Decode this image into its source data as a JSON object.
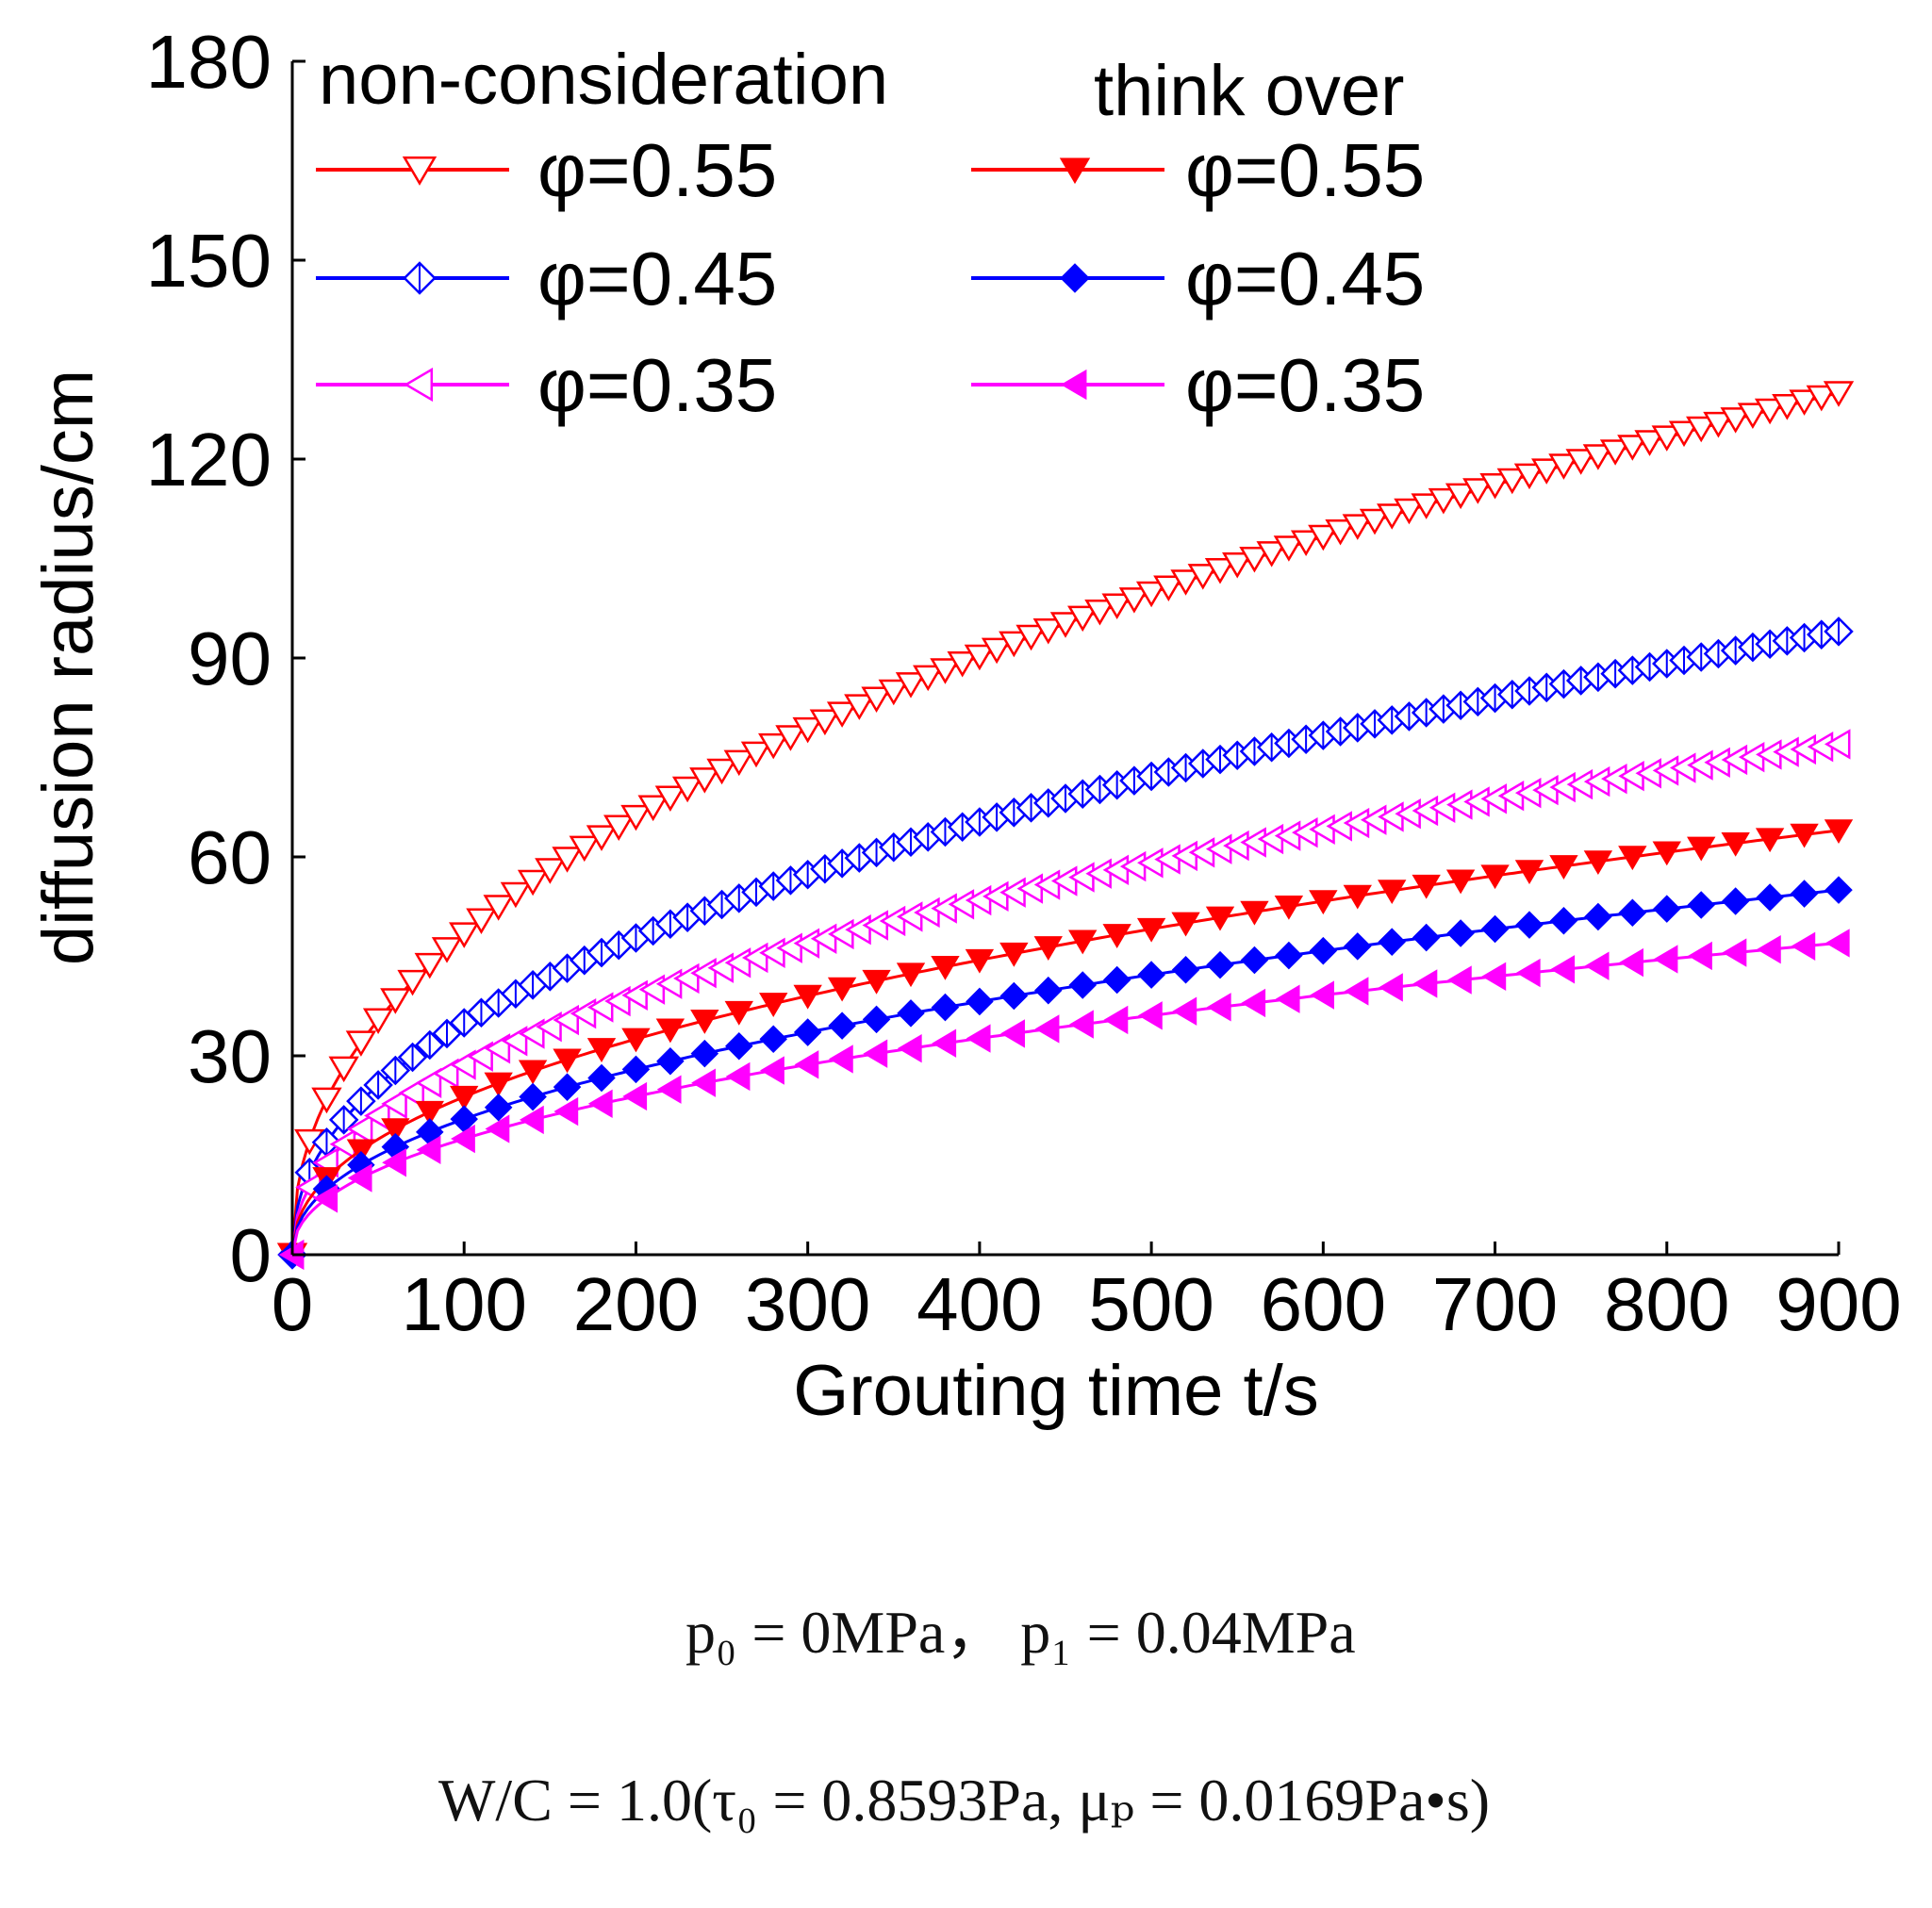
{
  "chart_data": {
    "type": "line",
    "xlabel": "Grouting time t/s",
    "ylabel": "diffusion radius/cm",
    "xlim": [
      0,
      900
    ],
    "ylim": [
      0,
      180
    ],
    "xticks": [
      0,
      100,
      200,
      300,
      400,
      500,
      600,
      700,
      800,
      900
    ],
    "yticks": [
      0,
      30,
      60,
      90,
      120,
      150,
      180
    ],
    "grid": false,
    "legend_position": "top-left",
    "legend_headers": {
      "left": "non-consideration",
      "right": "think over"
    },
    "series": [
      {
        "name": "non-consideration φ=0.55",
        "label": "φ=0.55",
        "group": "non-consideration",
        "color": "#ff0000",
        "marker": "triangle-down-open",
        "final": 130
      },
      {
        "name": "non-consideration φ=0.45",
        "label": "φ=0.45",
        "group": "non-consideration",
        "color": "#0000ff",
        "marker": "diamond-half",
        "final": 94
      },
      {
        "name": "non-consideration φ=0.35",
        "label": "φ=0.35",
        "group": "non-consideration",
        "color": "#ff00ff",
        "marker": "triangle-left-open",
        "final": 77
      },
      {
        "name": "think over φ=0.55",
        "label": "φ=0.55",
        "group": "think over",
        "color": "#ff0000",
        "marker": "triangle-down-filled",
        "final": 64
      },
      {
        "name": "think over φ=0.45",
        "label": "φ=0.45",
        "group": "think over",
        "color": "#0000ff",
        "marker": "diamond-filled",
        "final": 55
      },
      {
        "name": "think over φ=0.35",
        "label": "φ=0.35",
        "group": "think over",
        "color": "#ff00ff",
        "marker": "triangle-left-filled",
        "final": 47
      }
    ]
  },
  "conditions": {
    "line1": "p₀ = 0MPa， p₁ = 0.04MPa",
    "line2": "W/C = 1.0(τ₀ = 0.8593Pa, μₚ = 0.0169Pa•s)"
  }
}
